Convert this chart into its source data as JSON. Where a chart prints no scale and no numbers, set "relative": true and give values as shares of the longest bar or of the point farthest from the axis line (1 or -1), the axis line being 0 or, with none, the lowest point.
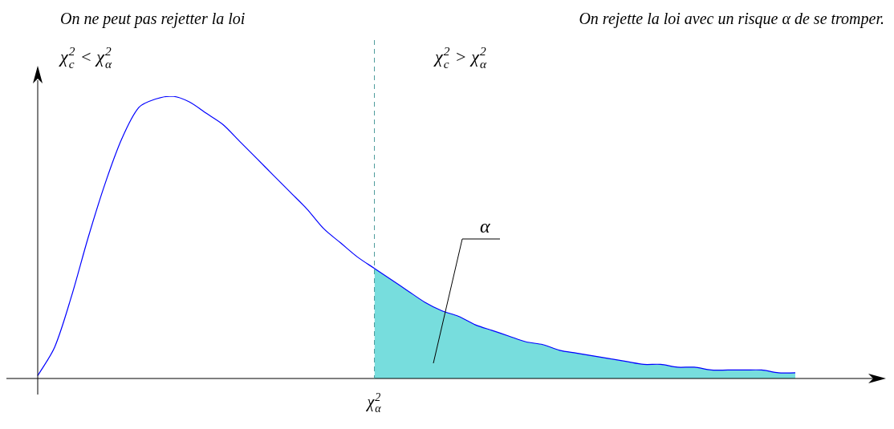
{
  "chart_data": {
    "type": "line",
    "relative": true,
    "categories": [
      null,
      null,
      null,
      null,
      null,
      null,
      null,
      null,
      null,
      null,
      null,
      null,
      null,
      null,
      null,
      null,
      null,
      null,
      null,
      null,
      null,
      null,
      null,
      null,
      null,
      null,
      null,
      null,
      null,
      null,
      null,
      null,
      null,
      null,
      null,
      null,
      null,
      null,
      null,
      null,
      null,
      null,
      null,
      null,
      null,
      null
    ],
    "series": [
      {
        "color": "#0000ff",
        "values": [
          0.01,
          0.11,
          0.29,
          0.5,
          0.69,
          0.85,
          0.96,
          0.99,
          1,
          0.98,
          0.94,
          0.9,
          0.84,
          0.78,
          0.72,
          0.66,
          0.6,
          0.53,
          0.48,
          0.43,
          0.39,
          0.35,
          0.31,
          0.27,
          0.24,
          0.22,
          0.19,
          0.17,
          0.15,
          0.13,
          0.12,
          0.1,
          0.09,
          0.08,
          0.07,
          0.06,
          0.05,
          0.05,
          0.04,
          0.04,
          0.03,
          0.03,
          0.03,
          0.03,
          0.02,
          0.02
        ]
      },
      {
        "type": "area",
        "color": "#00bfbf",
        "values": [
          null,
          null,
          null,
          null,
          null,
          null,
          null,
          null,
          null,
          null,
          null,
          null,
          null,
          null,
          null,
          null,
          null,
          null,
          null,
          null,
          0.39,
          0.35,
          0.31,
          0.27,
          0.24,
          0.22,
          0.19,
          0.17,
          0.15,
          0.13,
          0.12,
          0.1,
          0.09,
          0.08,
          0.07,
          0.06,
          0.05,
          0.05,
          0.04,
          0.04,
          0.03,
          0.03,
          0.03,
          0.03,
          0.02,
          0.02
        ]
      }
    ],
    "ref_lines": [
      {
        "axis": "x",
        "value": "χ$^{2}$$_{α}$",
        "color": "#4a9a9a",
        "line_style": "dashed"
      }
    ],
    "annotations": [
      "On ne peut pas rejetter la loi",
      "On rejette la loi avec un risque α de se tromper.",
      "χ$^{2}$$_{c}$ < χ$^{2}$$_{α}$",
      "χ$^{2}$$_{c}$ > χ$^{2}$$_{α}$",
      "α"
    ],
    "grid": false,
    "legend": false,
    "marker": "none",
    "line_style": "solid"
  }
}
